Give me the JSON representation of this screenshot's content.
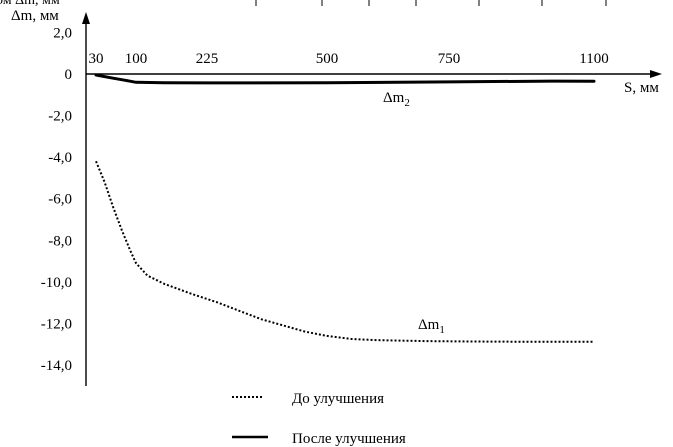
{
  "chart_data": {
    "type": "line",
    "ylabel": "Δm, мм",
    "xlabel": "S, мм",
    "top_clipped_text": "ом Δm, мм",
    "y_ticks": [
      "2,0",
      "0",
      "-2,0",
      "-4,0",
      "-6,0",
      "-8,0",
      "-10,0",
      "-12,0",
      "-14,0"
    ],
    "y_tick_values": [
      2,
      0,
      -2,
      -4,
      -6,
      -8,
      -10,
      -12,
      -14
    ],
    "x_ticks": [
      "30",
      "100",
      "225",
      "500",
      "750",
      "1100"
    ],
    "ylim": [
      -14,
      2
    ],
    "grid": false,
    "series": [
      {
        "name": "Δm1",
        "label_main": "Δm",
        "label_sub": "1",
        "style": "dotted",
        "points": [
          [
            30,
            -4.2
          ],
          [
            45,
            -5.2
          ],
          [
            60,
            -6.4
          ],
          [
            75,
            -7.5
          ],
          [
            90,
            -8.5
          ],
          [
            100,
            -9.1
          ],
          [
            120,
            -9.7
          ],
          [
            150,
            -10.1
          ],
          [
            200,
            -10.6
          ],
          [
            250,
            -11.0
          ],
          [
            300,
            -11.4
          ],
          [
            350,
            -11.8
          ],
          [
            400,
            -12.1
          ],
          [
            450,
            -12.4
          ],
          [
            500,
            -12.6
          ],
          [
            550,
            -12.75
          ],
          [
            600,
            -12.8
          ],
          [
            700,
            -12.85
          ],
          [
            800,
            -12.87
          ],
          [
            900,
            -12.88
          ],
          [
            1000,
            -12.88
          ],
          [
            1100,
            -12.88
          ]
        ]
      },
      {
        "name": "Δm2",
        "label_main": "Δm",
        "label_sub": "2",
        "style": "solid",
        "points": [
          [
            30,
            -0.05
          ],
          [
            60,
            -0.2
          ],
          [
            80,
            -0.3
          ],
          [
            100,
            -0.4
          ],
          [
            150,
            -0.42
          ],
          [
            225,
            -0.43
          ],
          [
            500,
            -0.42
          ],
          [
            750,
            -0.38
          ],
          [
            1000,
            -0.34
          ],
          [
            1100,
            -0.35
          ]
        ]
      }
    ],
    "legend": {
      "placement": "bottom",
      "entries": [
        {
          "label": "До улучшения",
          "style": "dotted"
        },
        {
          "label": "После улучшения",
          "style": "solid"
        }
      ]
    }
  }
}
